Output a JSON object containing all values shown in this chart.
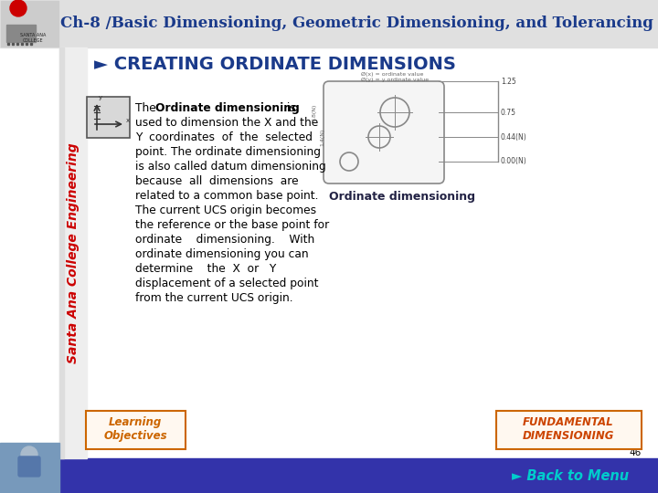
{
  "title": "Ch-8 /Basic Dimensioning, Geometric Dimensioning, and Tolerancing",
  "title_color": "#1a3a8a",
  "section_title": "► CREATING ORDINATE DIMENSIONS",
  "section_title_color": "#1a3a8a",
  "caption": "Ordinate dimensioning",
  "caption_color": "#222244",
  "bg_color": "#ffffff",
  "header_bg": "#e0e0e0",
  "footer_bg": "#3333aa",
  "footer_text": "► Back to Menu",
  "footer_text_color": "#00cccc",
  "page_num": "46",
  "btn1_text": "Learning\nObjectives",
  "btn1_border": "#cc6600",
  "btn1_text_color": "#cc6600",
  "btn2_text": "FUNDAMENTAL\nDIMENSIONING",
  "btn2_border": "#cc6600",
  "btn2_text_color": "#cc4400",
  "sidebar_text": "Santa Ana College Engineering",
  "sidebar_color": "#cc0000",
  "body_lines_plain": [
    "used to dimension the X and the",
    "Y  coordinates  of  the  selected",
    "point. The ordinate dimensioning",
    "is also called datum dimensioning",
    "because  all  dimensions  are",
    "related to a common base point.",
    "The current UCS origin becomes",
    "the reference or the base point for",
    "ordinate    dimensioning.    With",
    "ordinate dimensioning you can",
    "determine    the  X  or   Y",
    "displacement of a selected point",
    "from the current UCS origin."
  ]
}
